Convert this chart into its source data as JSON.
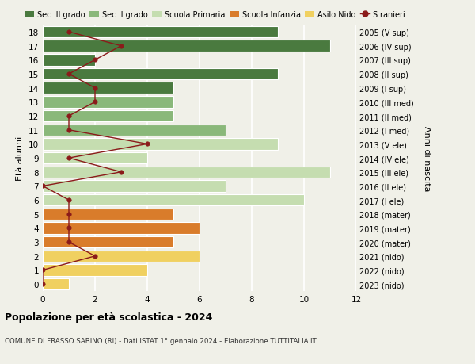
{
  "ages": [
    18,
    17,
    16,
    15,
    14,
    13,
    12,
    11,
    10,
    9,
    8,
    7,
    6,
    5,
    4,
    3,
    2,
    1,
    0
  ],
  "right_labels": [
    "2005 (V sup)",
    "2006 (IV sup)",
    "2007 (III sup)",
    "2008 (II sup)",
    "2009 (I sup)",
    "2010 (III med)",
    "2011 (II med)",
    "2012 (I med)",
    "2013 (V ele)",
    "2014 (IV ele)",
    "2015 (III ele)",
    "2016 (II ele)",
    "2017 (I ele)",
    "2018 (mater)",
    "2019 (mater)",
    "2020 (mater)",
    "2021 (nido)",
    "2022 (nido)",
    "2023 (nido)"
  ],
  "bar_values": [
    9,
    11,
    2,
    9,
    5,
    5,
    5,
    7,
    9,
    4,
    11,
    7,
    10,
    5,
    6,
    5,
    6,
    4,
    1
  ],
  "bar_colors": [
    "#4a7a3f",
    "#4a7a3f",
    "#4a7a3f",
    "#4a7a3f",
    "#4a7a3f",
    "#8ab87a",
    "#8ab87a",
    "#8ab87a",
    "#c5ddb0",
    "#c5ddb0",
    "#c5ddb0",
    "#c5ddb0",
    "#c5ddb0",
    "#d97c2b",
    "#d97c2b",
    "#d97c2b",
    "#f0d060",
    "#f0d060",
    "#f0d060"
  ],
  "stranieri_values": [
    1,
    3,
    2,
    1,
    2,
    2,
    1,
    1,
    4,
    1,
    3,
    0,
    1,
    1,
    1,
    1,
    2,
    0,
    0
  ],
  "stranieri_color": "#8b1a1a",
  "title1": "Popolazione per età scolastica - 2024",
  "title2": "COMUNE DI FRASSO SABINO (RI) - Dati ISTAT 1° gennaio 2024 - Elaborazione TUTTITALIA.IT",
  "ylabel": "Età alunni",
  "right_ylabel": "Anni di nascita",
  "xlim": [
    0,
    12
  ],
  "xticks": [
    0,
    2,
    4,
    6,
    8,
    10,
    12
  ],
  "legend_labels": [
    "Sec. II grado",
    "Sec. I grado",
    "Scuola Primaria",
    "Scuola Infanzia",
    "Asilo Nido",
    "Stranieri"
  ],
  "legend_colors": [
    "#4a7a3f",
    "#8ab87a",
    "#c5ddb0",
    "#d97c2b",
    "#f0d060",
    "#8b1a1a"
  ],
  "bg_color": "#f0f0e8",
  "bar_height": 0.82
}
